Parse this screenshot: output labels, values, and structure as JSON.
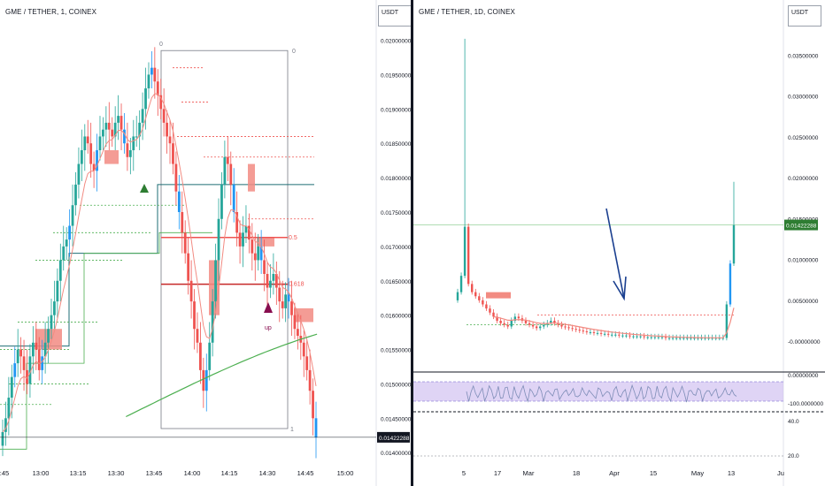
{
  "left": {
    "title": "GME / TETHER, 1, COINEX",
    "currency_badge": "USDT",
    "last_price": "0.01422288",
    "markers": {
      "fib_top": "0",
      "fib_bottom": "1",
      "fib_half": "0.5",
      "fib_618": "0.618",
      "up_label": "up"
    }
  },
  "right": {
    "title": "GME / TETHER, 1D, COINEX",
    "currency_badge": "USDT",
    "last_price": "0.01422288"
  },
  "colors": {
    "up": "#26a69a",
    "down": "#ef5350",
    "blue_candle": "#2196f3",
    "ema_green": "#4caf50",
    "sma_red": "#f28b82",
    "teal_line": "#1e6e75",
    "arrow": "#1a3f8f",
    "rsi_band": "#c9b8ee",
    "rsi_line": "#7e8db7"
  },
  "chart_data": [
    {
      "type": "candlestick",
      "title": "GME / TETHER, 1, COINEX",
      "x_ticks": [
        ":45",
        "13:00",
        "13:15",
        "13:30",
        "13:45",
        "14:00",
        "14:15",
        "14:30",
        "14:45",
        "15:00"
      ],
      "y_ticks": [
        "0.02000000",
        "0.01950000",
        "0.01900000",
        "0.01850000",
        "0.01800000",
        "0.01750000",
        "0.01700000",
        "0.01650000",
        "0.01600000",
        "0.01550000",
        "0.01500000",
        "0.01450000",
        "0.01400000"
      ],
      "ylim": [
        0.0139,
        0.0202
      ],
      "last_price": 0.01422288,
      "closes": [
        0.0143,
        0.0145,
        0.0148,
        0.0151,
        0.0153,
        0.0155,
        0.0154,
        0.0152,
        0.015,
        0.0154,
        0.0156,
        0.0155,
        0.0152,
        0.0154,
        0.0156,
        0.0158,
        0.016,
        0.0162,
        0.0165,
        0.0168,
        0.017,
        0.0171,
        0.0173,
        0.0176,
        0.0179,
        0.0182,
        0.0184,
        0.0186,
        0.0185,
        0.0182,
        0.0181,
        0.0184,
        0.0186,
        0.0187,
        0.0188,
        0.0187,
        0.0186,
        0.0188,
        0.0189,
        0.0187,
        0.0185,
        0.0183,
        0.0184,
        0.0186,
        0.0186,
        0.0188,
        0.019,
        0.0193,
        0.0195,
        0.0196,
        0.0194,
        0.0192,
        0.019,
        0.0188,
        0.0186,
        0.0185,
        0.0182,
        0.0178,
        0.0175,
        0.0172,
        0.0169,
        0.0165,
        0.0162,
        0.0158,
        0.0156,
        0.0152,
        0.0149,
        0.0152,
        0.0156,
        0.0162,
        0.0168,
        0.0174,
        0.0179,
        0.0183,
        0.0182,
        0.0179,
        0.0175,
        0.0172,
        0.017,
        0.0172,
        0.0173,
        0.0171,
        0.0169,
        0.0168,
        0.017,
        0.0168,
        0.0166,
        0.0164,
        0.0165,
        0.0166,
        0.0164,
        0.0162,
        0.0161,
        0.0163,
        0.0162,
        0.016,
        0.0158,
        0.0157,
        0.0156,
        0.0154,
        0.0152,
        0.0149,
        0.0145,
        0.01422
      ]
    },
    {
      "type": "candlestick",
      "title": "GME / TETHER, 1D, COINEX",
      "x_ticks": [
        "5",
        "17",
        "Mar",
        "18",
        "Apr",
        "15",
        "May",
        "13",
        "Ju"
      ],
      "y_ticks": [
        "0.03500000",
        "0.03000000",
        "0.02500000",
        "0.02000000",
        "0.01500000",
        "0.01000000",
        "0.00500000",
        "-0.00000000"
      ],
      "ylim": [
        -0.0015,
        0.0385
      ],
      "last_price": 0.01422288,
      "closes": [
        0.006,
        0.008,
        0.014,
        0.007,
        0.006,
        0.0055,
        0.005,
        0.0045,
        0.004,
        0.0035,
        0.003,
        0.0025,
        0.0022,
        0.002,
        0.0018,
        0.0025,
        0.003,
        0.0028,
        0.0025,
        0.0022,
        0.002,
        0.0018,
        0.0016,
        0.0018,
        0.002,
        0.0022,
        0.0025,
        0.0022,
        0.002,
        0.0018,
        0.0017,
        0.0016,
        0.0015,
        0.0014,
        0.0013,
        0.0012,
        0.0011,
        0.0011,
        0.001,
        0.001,
        0.0009,
        0.0009,
        0.0008,
        0.0008,
        0.0008,
        0.0007,
        0.0007,
        0.0007,
        0.0006,
        0.0006,
        0.0006,
        0.0006,
        0.0005,
        0.0005,
        0.0005,
        0.0005,
        0.0005,
        0.0005,
        0.0004,
        0.0004,
        0.0004,
        0.0004,
        0.0004,
        0.0004,
        0.0004,
        0.0004,
        0.0004,
        0.0004,
        0.0004,
        0.0004,
        0.0004,
        0.0004,
        0.0004,
        0.0004,
        0.0004,
        0.0045,
        0.0095,
        0.0142
      ],
      "rsi": {
        "y_ticks": [
          "0.00000000",
          "-100.0000000",
          "40.0",
          "20.0"
        ]
      }
    }
  ]
}
